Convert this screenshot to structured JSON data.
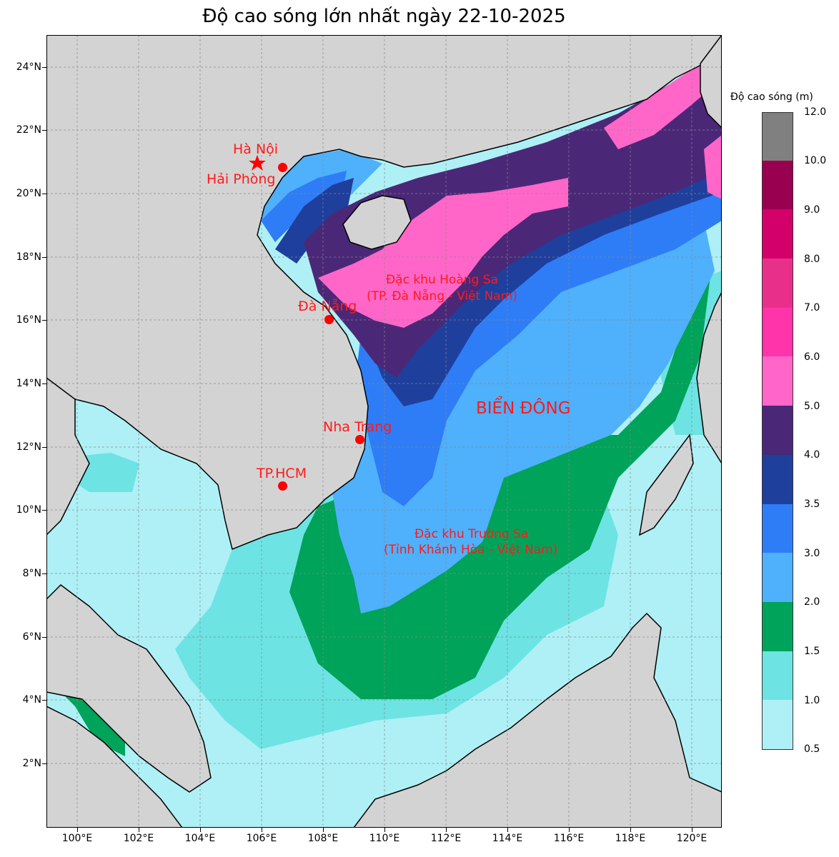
{
  "title": "Độ cao sóng lớn nhất ngày 22-10-2025",
  "axes": {
    "lat_ticks": [
      "24°N",
      "22°N",
      "20°N",
      "18°N",
      "16°N",
      "14°N",
      "12°N",
      "10°N",
      "8°N",
      "6°N",
      "4°N",
      "2°N"
    ],
    "lon_ticks": [
      "100°E",
      "102°E",
      "104°E",
      "106°E",
      "108°E",
      "110°E",
      "112°E",
      "114°E",
      "116°E",
      "118°E",
      "120°E"
    ],
    "lat_range": [
      0,
      25
    ],
    "lon_range": [
      99,
      121
    ],
    "grid": true
  },
  "labels": {
    "hanoi": "Hà Nội",
    "haiphong": "Hải Phòng",
    "danang": "Đà Nẵng",
    "nhatrang": "Nha Trang",
    "tphcm": "TP.HCM",
    "hoangsa_1": "Đặc khu Hoàng Sa",
    "hoangsa_2": "(TP. Đà Nẵng - Việt Nam)",
    "bien_dong": "BIỂN ĐÔNG",
    "truongsa_1": "Đặc khu Trường Sa",
    "truongsa_2": "(Tỉnh Khánh Hòa - Việt Nam)"
  },
  "colorbar": {
    "title": "Độ cao sóng (m)",
    "levels": [
      "0.5",
      "1.0",
      "1.5",
      "2.0",
      "3.0",
      "3.5",
      "4.0",
      "5.0",
      "6.0",
      "7.0",
      "8.0",
      "9.0",
      "10.0",
      "12.0"
    ],
    "colors": [
      "#aff0f6",
      "#6de3e3",
      "#00a35a",
      "#4fb0fb",
      "#2e7df7",
      "#1f3f9c",
      "#4a2877",
      "#ff66c8",
      "#ff33aa",
      "#e8308a",
      "#d4006a",
      "#99004f",
      "#808080"
    ]
  },
  "chart_data": {
    "type": "heatmap",
    "title": "Độ cao sóng lớn nhất ngày 22-10-2025",
    "variable": "Độ cao sóng (m)",
    "bins": [
      0.5,
      1.0,
      1.5,
      2.0,
      3.0,
      3.5,
      4.0,
      5.0,
      6.0,
      7.0,
      8.0,
      9.0,
      10.0,
      12.0
    ],
    "peak_area": "5.0-6.0 m near Đặc khu Hoàng Sa and Taiwan Strait",
    "places": [
      {
        "name": "Hà Nội",
        "lon": 105.85,
        "lat": 21.03
      },
      {
        "name": "Hải Phòng",
        "lon": 106.68,
        "lat": 20.86
      },
      {
        "name": "Đà Nẵng",
        "lon": 108.2,
        "lat": 16.05
      },
      {
        "name": "Nha Trang",
        "lon": 109.19,
        "lat": 12.24
      },
      {
        "name": "TP.HCM",
        "lon": 106.66,
        "lat": 10.76
      }
    ]
  }
}
